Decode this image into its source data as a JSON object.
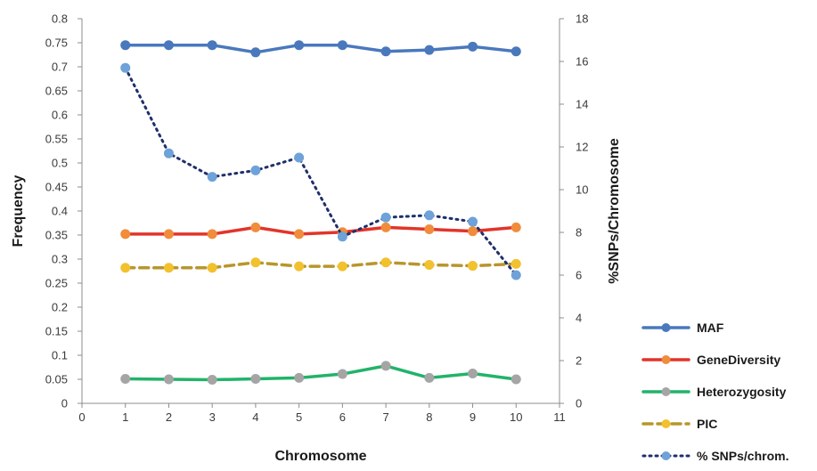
{
  "chart_data": {
    "type": "line",
    "title": "",
    "xlabel": "Chromosome",
    "ylabel": "Frequency",
    "y2label": "%SNPs/Chromosome",
    "x": [
      1,
      2,
      3,
      4,
      5,
      6,
      7,
      8,
      9,
      10
    ],
    "xlim": [
      0,
      11
    ],
    "xticks": [
      "0",
      "1",
      "2",
      "3",
      "4",
      "5",
      "6",
      "7",
      "8",
      "9",
      "10",
      "11"
    ],
    "ylim": [
      0,
      0.8
    ],
    "yticks": [
      "0",
      "0.05",
      "0.1",
      "0.15",
      "0.2",
      "0.25",
      "0.3",
      "0.35",
      "0.4",
      "0.45",
      "0.5",
      "0.55",
      "0.6",
      "0.65",
      "0.7",
      "0.75",
      "0.8"
    ],
    "y2lim": [
      0,
      18
    ],
    "y2ticks": [
      "0",
      "2",
      "4",
      "6",
      "8",
      "10",
      "12",
      "14",
      "16",
      "18"
    ],
    "grid": false,
    "legend_position": "bottom-right",
    "series": [
      {
        "name": "MAF",
        "axis": "left",
        "color": "#4a78bd",
        "marker_color": "#4a78bd",
        "style": "solid",
        "values": [
          0.745,
          0.745,
          0.745,
          0.73,
          0.745,
          0.745,
          0.732,
          0.735,
          0.742,
          0.732
        ]
      },
      {
        "name": "GeneDiversity",
        "axis": "left",
        "color": "#e2342a",
        "marker_color": "#f08c3c",
        "style": "solid",
        "values": [
          0.352,
          0.352,
          0.352,
          0.366,
          0.352,
          0.356,
          0.366,
          0.362,
          0.358,
          0.366
        ]
      },
      {
        "name": "Heterozygosity",
        "axis": "left",
        "color": "#21b36b",
        "marker_color": "#a5a5a5",
        "style": "solid",
        "values": [
          0.051,
          0.05,
          0.049,
          0.051,
          0.053,
          0.061,
          0.078,
          0.053,
          0.062,
          0.05
        ]
      },
      {
        "name": "PIC",
        "axis": "left",
        "color": "#b8962c",
        "marker_color": "#f2c12e",
        "style": "dashed",
        "values": [
          0.282,
          0.282,
          0.282,
          0.293,
          0.285,
          0.285,
          0.293,
          0.288,
          0.286,
          0.29
        ]
      },
      {
        "name": "% SNPs/chrom.",
        "axis": "right",
        "color": "#1f2f6b",
        "marker_color": "#6ea2d8",
        "style": "dotted",
        "values": [
          15.7,
          11.7,
          10.6,
          10.9,
          11.5,
          7.8,
          8.7,
          8.8,
          8.5,
          6.0
        ]
      }
    ]
  }
}
